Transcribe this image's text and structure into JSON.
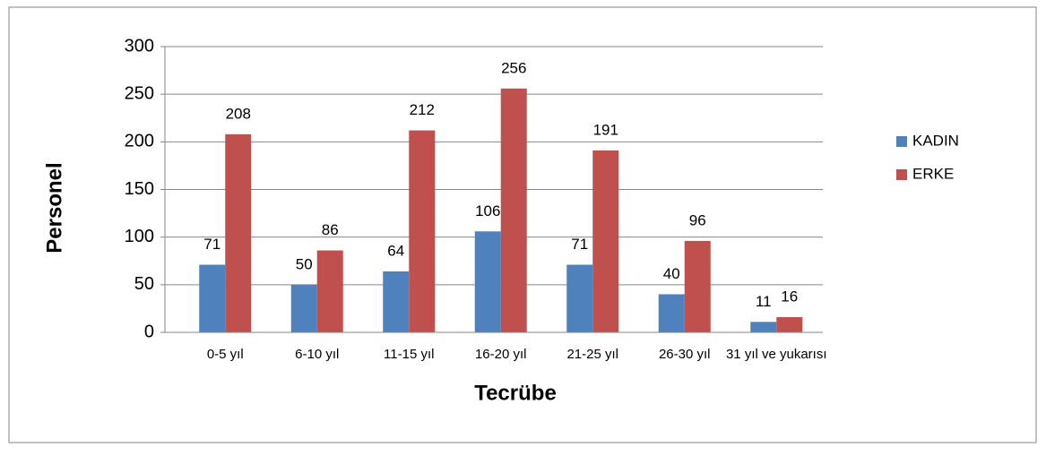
{
  "chart_data": {
    "type": "bar",
    "x_label": "Tecrübe",
    "y_label": "Personel",
    "categories": [
      "0-5 yıl",
      "6-10 yıl",
      "11-15 yıl",
      "16-20 yıl",
      "21-25 yıl",
      "26-30 yıl",
      "31 yıl ve yukarısı"
    ],
    "series": [
      {
        "name": "KADIN",
        "color": "#4f81bd",
        "values": [
          71,
          50,
          64,
          106,
          71,
          40,
          11
        ]
      },
      {
        "name": "ERKE",
        "color": "#c0504d",
        "values": [
          208,
          86,
          212,
          256,
          191,
          96,
          16
        ]
      }
    ],
    "ylim": [
      0,
      300
    ],
    "yticks": [
      0,
      50,
      100,
      150,
      200,
      250,
      300
    ],
    "grid": true,
    "legend": "right"
  }
}
